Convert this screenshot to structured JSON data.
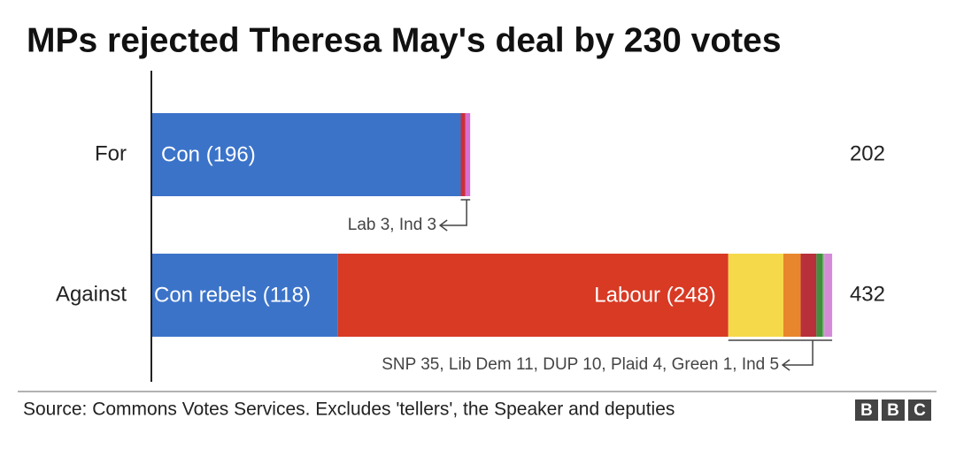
{
  "chart_data": {
    "type": "stacked-bar",
    "title": "MPs rejected Theresa May's deal by 230 votes",
    "categories": [
      "For",
      "Against"
    ],
    "totals": [
      202,
      432
    ],
    "bars": [
      {
        "segments": [
          {
            "value": 196,
            "label": "Con (196)",
            "color": "#3b73c9"
          },
          {
            "value": 3,
            "color": "#c9303b"
          },
          {
            "value": 3,
            "color": "#d96fd0"
          }
        ],
        "note": "Lab 3, Ind 3"
      },
      {
        "segments": [
          {
            "value": 118,
            "label": "Con rebels (118)",
            "color": "#3b73c9"
          },
          {
            "value": 248,
            "label": "Labour (248)",
            "color": "#d83a24"
          },
          {
            "value": 35,
            "color": "#f6d94a"
          },
          {
            "value": 11,
            "color": "#e8862d"
          },
          {
            "value": 10,
            "color": "#b8303a"
          },
          {
            "value": 4,
            "color": "#3f8f3f"
          },
          {
            "value": 1,
            "color": "#7ec46e"
          },
          {
            "value": 5,
            "color": "#d58ad8"
          }
        ],
        "note": "SNP 35, Lib Dem 11, DUP 10, Plaid 4, Green 1, Ind 5"
      }
    ],
    "source": "Source: Commons Votes Services. Excludes 'tellers', the Speaker and deputies",
    "logo": [
      "B",
      "B",
      "C"
    ]
  }
}
